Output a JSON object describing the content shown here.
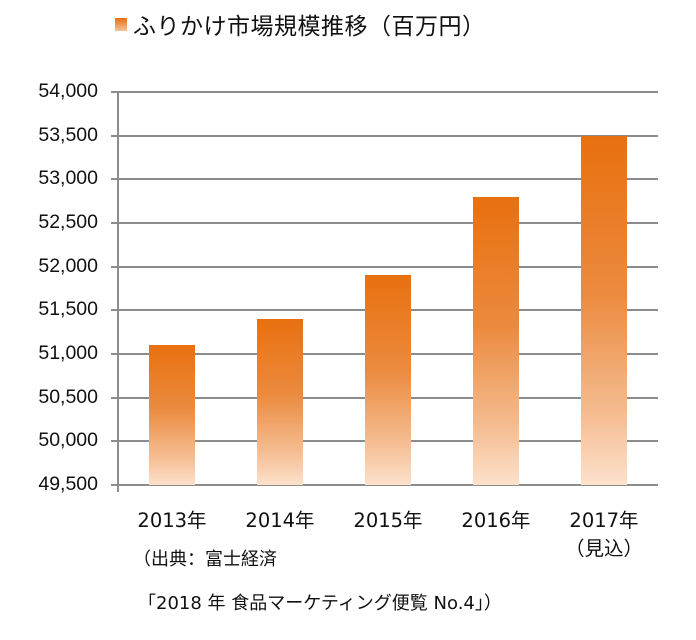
{
  "legend": {
    "label": "ふりかけ市場規模推移（百万円）",
    "color": "#e8700f"
  },
  "chart_data": {
    "type": "bar",
    "title": "ふりかけ市場規模推移（百万円）",
    "xlabel": "",
    "ylabel": "百万円",
    "categories": [
      "2013年",
      "2014年",
      "2015年",
      "2016年",
      "2017年（見込）"
    ],
    "series": [
      {
        "name": "ふりかけ市場規模推移（百万円）",
        "values": [
          51100,
          51400,
          51900,
          52800,
          53500
        ]
      }
    ],
    "ylim": [
      49500,
      54000
    ],
    "yticks": [
      "54,000",
      "53,500",
      "53,000",
      "52,500",
      "52,000",
      "51,500",
      "51,000",
      "50,500",
      "50,000",
      "49,500"
    ],
    "grid": true,
    "legend_position": "top",
    "bar_gradient": [
      "#e8700f",
      "#fce1cb"
    ]
  },
  "xaxis": {
    "labels": [
      {
        "main": "2013年",
        "sub": ""
      },
      {
        "main": "2014年",
        "sub": ""
      },
      {
        "main": "2015年",
        "sub": ""
      },
      {
        "main": "2016年",
        "sub": ""
      },
      {
        "main": "2017年",
        "sub": "（見込）"
      }
    ]
  },
  "source": {
    "line1": "（出典：富士経済",
    "line2": "「2018 年  食品マーケティング便覧  No.4」）"
  }
}
